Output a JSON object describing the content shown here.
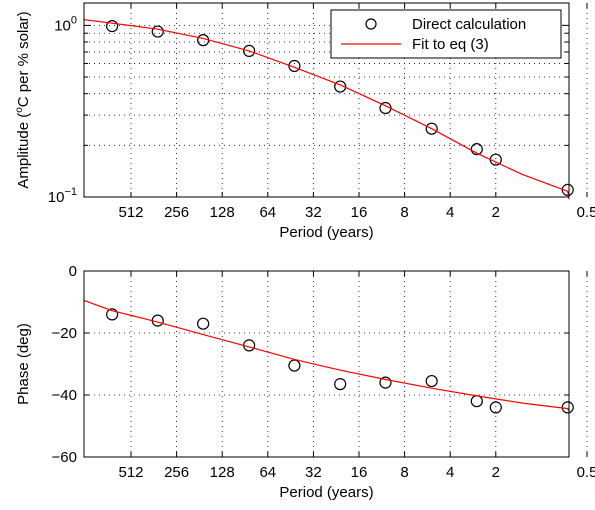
{
  "chart_data": [
    {
      "type": "scatter",
      "xlabel": "Period (years)",
      "ylabel_pre": "Amplitude (",
      "ylabel_sup": "o",
      "ylabel_post": "C per % solar)",
      "y_scale": "log",
      "ylim": [
        0.1,
        1.35
      ],
      "xlim": [
        1300,
        0.5
      ],
      "x_scale": "log",
      "x_ticks": [
        512,
        256,
        128,
        64,
        32,
        16,
        8,
        4,
        2,
        0.5
      ],
      "x_tick_labels": [
        "512",
        "256",
        "128",
        "64",
        "32",
        "16",
        "8",
        "4",
        "2",
        "0.5"
      ],
      "y_ticks": [
        {
          "value": 1,
          "base": "10",
          "exp": "0"
        },
        {
          "value": 0.1,
          "base": "10",
          "exp": "−1"
        }
      ],
      "grid": true,
      "legend_position": "top-right",
      "legend": [
        {
          "label": "Direct calculation",
          "marker": "open-circle",
          "color": "#000000"
        },
        {
          "label": "Fit to eq (3)",
          "marker": "line",
          "color": "#ff0000"
        }
      ],
      "series": [
        {
          "name": "Direct calculation",
          "kind": "points",
          "color": "#000000",
          "x": [
            682,
            341,
            171,
            85,
            42.7,
            21.3,
            10.7,
            5.3,
            2.67,
            2.0,
            0.67
          ],
          "y": [
            0.99,
            0.92,
            0.82,
            0.71,
            0.58,
            0.44,
            0.33,
            0.25,
            0.19,
            0.165,
            0.11
          ]
        },
        {
          "name": "Fit to eq (3)",
          "kind": "line",
          "color": "#ff0000",
          "x": [
            1300,
            682,
            341,
            171,
            85,
            42.7,
            21.3,
            10.7,
            5.3,
            2.67,
            1.33,
            0.67,
            0.5
          ],
          "y": [
            1.08,
            1.03,
            0.95,
            0.84,
            0.71,
            0.57,
            0.45,
            0.34,
            0.25,
            0.18,
            0.135,
            0.108,
            0.097
          ]
        }
      ]
    },
    {
      "type": "scatter",
      "xlabel": "Period (years)",
      "ylabel": "Phase (deg)",
      "x_scale": "log",
      "xlim": [
        1300,
        0.5
      ],
      "ylim": [
        -60,
        0
      ],
      "x_ticks": [
        512,
        256,
        128,
        64,
        32,
        16,
        8,
        4,
        2,
        0.5
      ],
      "x_tick_labels": [
        "512",
        "256",
        "128",
        "64",
        "32",
        "16",
        "8",
        "4",
        "2",
        "0.5"
      ],
      "y_ticks": [
        0,
        -20,
        -40,
        -60
      ],
      "y_tick_labels": [
        "0",
        "−20",
        "−40",
        "−60"
      ],
      "grid": true,
      "series": [
        {
          "name": "Direct calculation",
          "kind": "points",
          "color": "#000000",
          "x": [
            682,
            341,
            171,
            85,
            42.7,
            21.3,
            10.7,
            5.3,
            2.67,
            2.0,
            0.67
          ],
          "y": [
            -14,
            -16,
            -17,
            -24,
            -30.5,
            -36.5,
            -36,
            -35.5,
            -42,
            -44,
            -44
          ]
        },
        {
          "name": "Fit to eq (3)",
          "kind": "line",
          "color": "#ff0000",
          "x": [
            1300,
            682,
            341,
            171,
            85,
            42.7,
            21.3,
            10.7,
            5.3,
            2.67,
            1.33,
            0.67,
            0.5
          ],
          "y": [
            -9.5,
            -12.8,
            -16.5,
            -20.5,
            -24.5,
            -28.5,
            -32.0,
            -35.0,
            -37.8,
            -40.3,
            -42.6,
            -44.4,
            -45.2
          ]
        }
      ]
    }
  ]
}
